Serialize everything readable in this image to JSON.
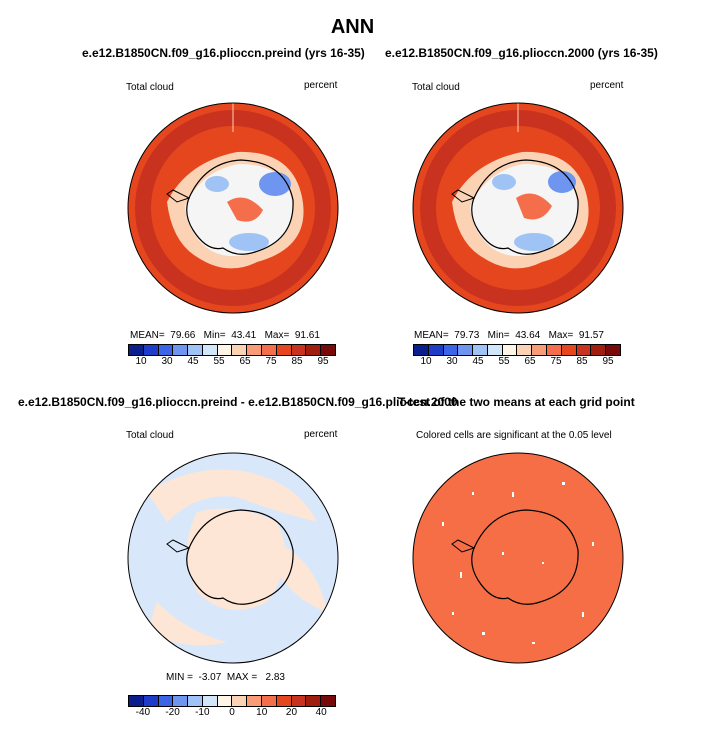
{
  "main_title": "ANN",
  "panels": {
    "top_left": {
      "case": "e.e12.B1850CN.f09_g16.plioccn.preind (yrs 16-35)",
      "variable": "Total cloud",
      "units": "percent",
      "mean_label": "MEAN=",
      "mean": "79.66",
      "min_label": "Min=",
      "min": "43.41",
      "max_label": "Max=",
      "max": "91.61"
    },
    "top_right": {
      "case": "e.e12.B1850CN.f09_g16.plioccn.2000 (yrs 16-35)",
      "variable": "Total cloud",
      "units": "percent",
      "mean_label": "MEAN=",
      "mean": "79.73",
      "min_label": "Min=",
      "min": "43.64",
      "max_label": "Max=",
      "max": "91.57"
    },
    "bottom_left": {
      "case": "e.e12.B1850CN.f09_g16.plioccn.preind - e.e12.B1850CN.f09_g16.plioccn.2000",
      "variable": "Total cloud",
      "units": "percent",
      "min_label": "MIN =",
      "min": "-3.07",
      "max_label": "MAX =",
      "max": "2.83"
    },
    "bottom_right": {
      "title": "T-test of the two means at each grid point",
      "note": "Colored cells are significant at the 0.05 level"
    }
  },
  "colorbar_abs": {
    "labels": [
      "10",
      "30",
      "45",
      "55",
      "65",
      "75",
      "85",
      "95"
    ],
    "colors": [
      "#0a1e8c",
      "#1f3cc8",
      "#3c64e6",
      "#6e96f0",
      "#a0c3f5",
      "#d2e6fa",
      "#fff5e6",
      "#fcd2b4",
      "#fa9b78",
      "#f56e4b",
      "#e6461e",
      "#c8321e",
      "#a01e0f",
      "#780a0a"
    ]
  },
  "colorbar_diff": {
    "labels": [
      "-40",
      "-20",
      "-10",
      "0",
      "10",
      "20",
      "40"
    ],
    "colors": [
      "#0a1e8c",
      "#1f3cc8",
      "#3c64e6",
      "#6e96f0",
      "#a0c3f5",
      "#d2e6fa",
      "#fff5e6",
      "#fcd2b4",
      "#fa9b78",
      "#f56e4b",
      "#e6461e",
      "#c8321e",
      "#a01e0f",
      "#780a0a"
    ]
  },
  "map_colors": {
    "ocean_high": "#e6461e",
    "ocean_ring": "#f05a32",
    "dark_band": "#c8321e",
    "coast_light": "#fcd2b4",
    "inland_white": "#f5f5f5",
    "inland_blue": "#a0c3f5",
    "inland_deep_blue": "#6e96f0",
    "diff_blue": "#d8e8fa",
    "diff_tan": "#fde6d6",
    "ttest_orange": "#f56e46"
  }
}
